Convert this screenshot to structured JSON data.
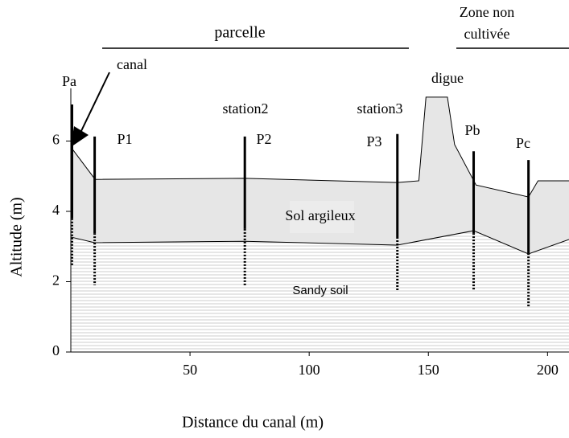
{
  "chart_data": {
    "type": "cross-section",
    "x_label": "Distance du canal (m)",
    "y_label": "Altitude (m)",
    "xlim": [
      0,
      209
    ],
    "ylim": [
      0,
      7.5
    ],
    "xticks": [
      50,
      100,
      150,
      200
    ],
    "yticks": [
      0,
      2,
      4,
      6
    ],
    "surface": {
      "x": [
        0,
        10.2,
        73,
        137,
        146,
        149,
        158,
        161,
        170,
        192,
        196,
        209
      ],
      "values": [
        5.83,
        4.91,
        4.94,
        4.82,
        4.87,
        7.25,
        7.25,
        5.9,
        4.75,
        4.41,
        4.87,
        4.87
      ]
    },
    "interface": {
      "x": [
        0,
        10,
        73,
        137,
        169,
        192,
        209
      ],
      "values": [
        3.27,
        3.11,
        3.15,
        3.04,
        3.45,
        2.79,
        3.2
      ]
    },
    "wells": [
      {
        "name": "Pa",
        "x": 0,
        "top": 7.04,
        "mid": 3.8,
        "bottom": 2.47
      },
      {
        "name": "P1",
        "x": 10,
        "top": 6.13,
        "mid": 3.38,
        "bottom": 1.9
      },
      {
        "name": "P2",
        "x": 73,
        "top": 6.13,
        "mid": 3.5,
        "bottom": 1.9
      },
      {
        "name": "P3",
        "x": 137,
        "top": 6.2,
        "mid": 3.27,
        "bottom": 1.74
      },
      {
        "name": "Pb",
        "x": 169,
        "top": 5.71,
        "mid": 3.38,
        "bottom": 1.78
      },
      {
        "name": "Pc",
        "x": 192,
        "top": 5.46,
        "mid": 2.81,
        "bottom": 1.26
      }
    ],
    "annotations": [
      "canal",
      "station2",
      "station3",
      "digue",
      "Sol argileux",
      "Sandy soil",
      "parcelle",
      "Zone non",
      "cultivée"
    ]
  }
}
